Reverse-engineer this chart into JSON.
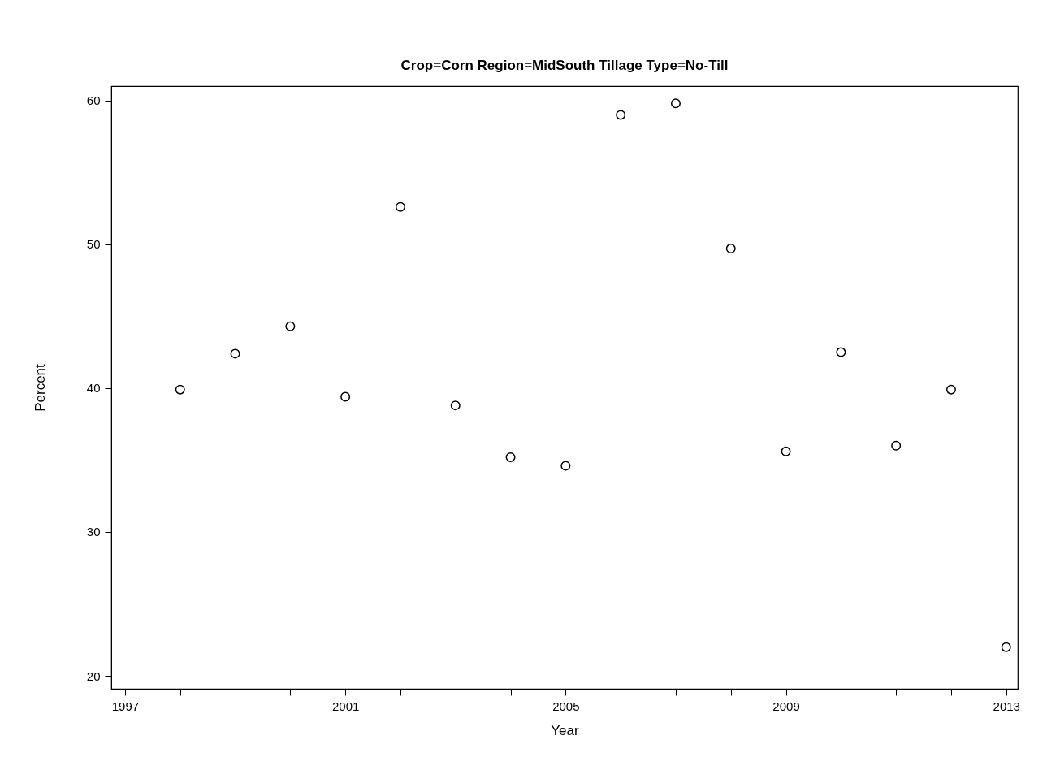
{
  "chart_data": {
    "type": "scatter",
    "title": "Crop=Corn Region=MidSouth Tillage Type=No-Till",
    "xlabel": "Year",
    "ylabel": "Percent",
    "x": [
      1998,
      1999,
      2000,
      2001,
      2002,
      2003,
      2004,
      2005,
      2006,
      2007,
      2008,
      2009,
      2010,
      2011,
      2012,
      2013
    ],
    "values": [
      39.9,
      42.4,
      44.3,
      39.4,
      52.6,
      38.8,
      35.2,
      34.6,
      59.0,
      59.8,
      49.7,
      35.6,
      42.5,
      36.0,
      39.9,
      22.0
    ],
    "color": "#000000",
    "marker": "circle",
    "xlim": [
      1996.75,
      2013.21
    ],
    "ylim": [
      19.1,
      61.0
    ],
    "xticks": [
      1997,
      {
        "value": 1998,
        "label": null
      },
      {
        "value": 1999,
        "label": null
      },
      {
        "value": 2000,
        "label": null
      },
      2001,
      {
        "value": 2002,
        "label": null
      },
      {
        "value": 2003,
        "label": null
      },
      {
        "value": 2004,
        "label": null
      },
      2005,
      {
        "value": 2006,
        "label": null
      },
      {
        "value": 2007,
        "label": null
      },
      {
        "value": 2008,
        "label": null
      },
      2009,
      {
        "value": 2010,
        "label": null
      },
      {
        "value": 2011,
        "label": null
      },
      {
        "value": 2012,
        "label": null
      },
      2013
    ],
    "yticks": [
      20,
      30,
      40,
      50,
      60
    ]
  }
}
